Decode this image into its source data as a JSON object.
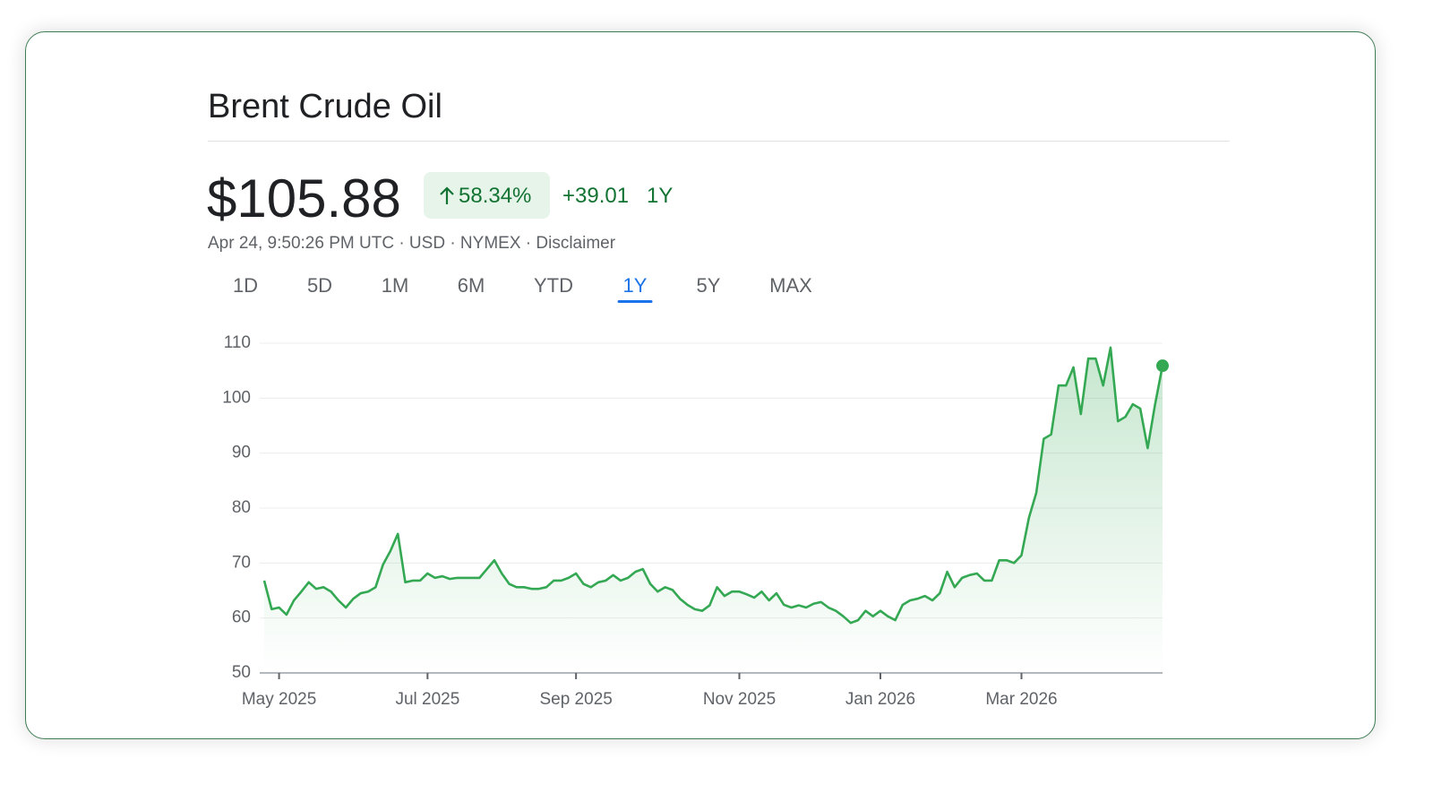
{
  "header": {
    "title": "Brent Crude Oil"
  },
  "quote": {
    "price": "$105.88",
    "change_percent": "58.34%",
    "change": "+39.01",
    "period": "1Y",
    "meta": "Apr 24, 9:50:26 PM UTC · USD · NYMEX · Disclaimer"
  },
  "tabs": {
    "items": [
      "1D",
      "5D",
      "1M",
      "6M",
      "YTD",
      "1Y",
      "5Y",
      "MAX"
    ],
    "active": "1Y"
  },
  "chart_data": {
    "type": "line",
    "color": "#34a853",
    "grid": true,
    "categories": [
      null,
      null,
      "May 2025",
      null,
      null,
      null,
      null,
      null,
      null,
      null,
      null,
      null,
      null,
      null,
      null,
      null,
      null,
      null,
      null,
      null,
      null,
      null,
      "Jul 2025",
      null,
      null,
      null,
      null,
      null,
      null,
      null,
      null,
      null,
      null,
      null,
      null,
      null,
      null,
      null,
      null,
      null,
      null,
      null,
      "Sep 2025",
      null,
      null,
      null,
      null,
      null,
      null,
      null,
      null,
      null,
      null,
      null,
      null,
      null,
      null,
      null,
      null,
      null,
      null,
      null,
      null,
      null,
      "Nov 2025",
      null,
      null,
      null,
      null,
      null,
      null,
      null,
      null,
      null,
      null,
      null,
      null,
      null,
      null,
      null,
      null,
      null,
      null,
      "Jan 2026",
      null,
      null,
      null,
      null,
      null,
      null,
      null,
      null,
      null,
      null,
      null,
      null,
      null,
      null,
      null,
      null,
      null,
      null,
      "Mar 2026",
      null,
      null,
      null,
      null,
      null,
      null,
      null,
      null,
      null,
      null,
      null,
      null,
      null,
      null,
      null,
      null,
      null,
      null,
      null
    ],
    "values": [
      66.8,
      61.6,
      61.9,
      60.6,
      63.2,
      64.8,
      66.5,
      65.3,
      65.6,
      64.8,
      63.2,
      61.9,
      63.5,
      64.5,
      64.8,
      65.6,
      69.7,
      72.2,
      75.3,
      66.5,
      66.8,
      66.8,
      68.1,
      67.3,
      67.6,
      67.1,
      67.3,
      67.3,
      67.3,
      67.3,
      68.9,
      70.5,
      68.1,
      66.2,
      65.6,
      65.6,
      65.3,
      65.3,
      65.6,
      66.8,
      66.8,
      67.3,
      68.1,
      66.2,
      65.6,
      66.5,
      66.8,
      67.8,
      66.8,
      67.3,
      68.4,
      68.9,
      66.2,
      64.8,
      65.6,
      65.1,
      63.5,
      62.4,
      61.6,
      61.3,
      62.3,
      65.6,
      64.0,
      64.8,
      64.8,
      64.3,
      63.7,
      64.8,
      63.2,
      64.5,
      62.4,
      61.9,
      62.3,
      61.9,
      62.6,
      62.9,
      61.9,
      61.3,
      60.3,
      59.1,
      59.6,
      61.3,
      60.3,
      61.3,
      60.3,
      59.6,
      62.4,
      63.2,
      63.5,
      64.0,
      63.2,
      64.5,
      68.4,
      65.6,
      67.3,
      67.8,
      68.1,
      66.8,
      66.8,
      70.5,
      70.5,
      70.0,
      71.4,
      78.2,
      82.8,
      92.6,
      93.4,
      102.3,
      102.3,
      105.6,
      97.1,
      107.2,
      107.2,
      102.3,
      109.2,
      95.8,
      96.6,
      98.9,
      98.1,
      90.9,
      98.9,
      105.9
    ],
    "ylim": [
      50,
      110
    ],
    "yticks": [
      50,
      60,
      70,
      80,
      90,
      100,
      110
    ]
  }
}
